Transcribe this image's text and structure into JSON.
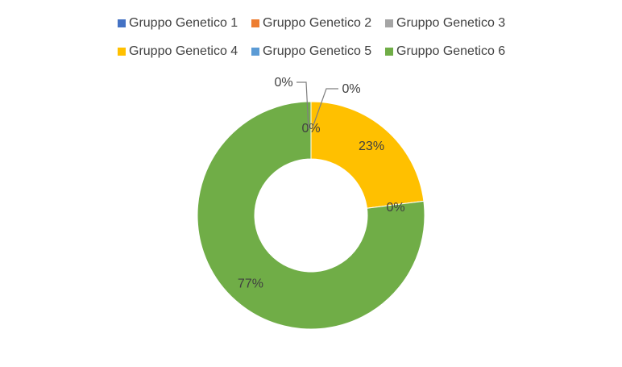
{
  "chart_data": {
    "type": "donut",
    "categories": [
      "Gruppo Genetico 1",
      "Gruppo Genetico 2",
      "Gruppo Genetico 3",
      "Gruppo Genetico 4",
      "Gruppo Genetico 5",
      "Gruppo Genetico 6"
    ],
    "values": [
      0,
      0,
      0,
      23,
      0,
      77
    ],
    "value_labels": [
      "0%",
      "0%",
      "0%",
      "23%",
      "0%",
      "77%"
    ],
    "colors": [
      "#4472c4",
      "#ed7d31",
      "#a5a5a5",
      "#ffc000",
      "#5b9bd5",
      "#70ad47"
    ],
    "legend": "top"
  }
}
